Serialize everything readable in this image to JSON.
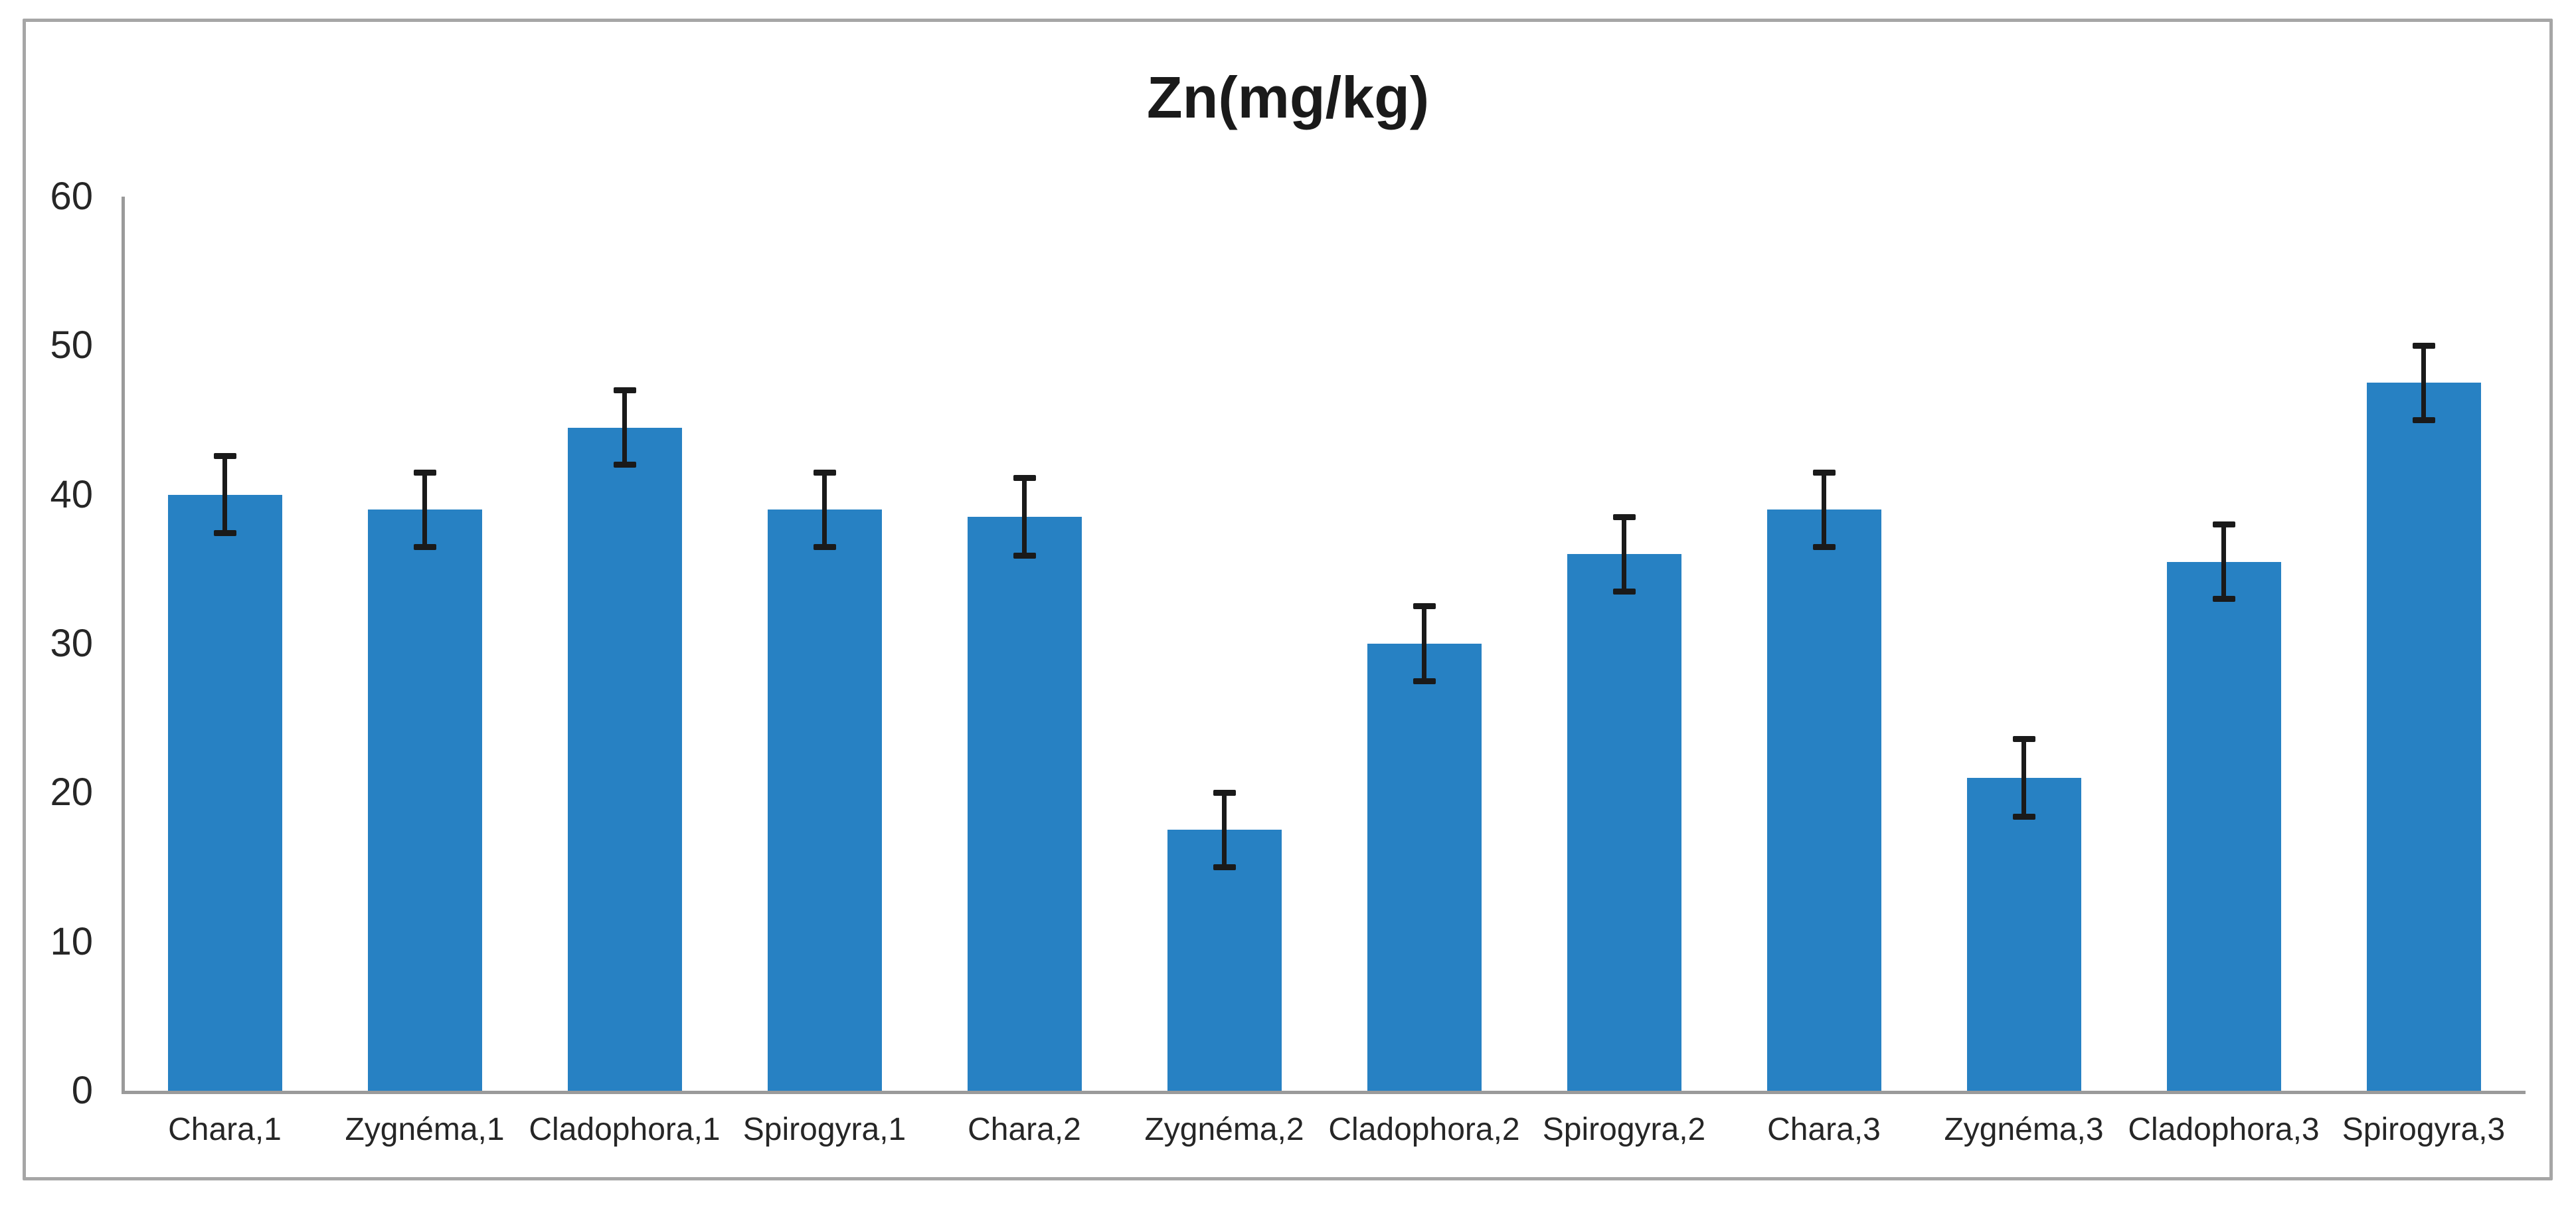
{
  "chart_data": {
    "type": "bar",
    "title": "Zn(mg/kg)",
    "categories": [
      "Chara,1",
      "Zygnéma,1",
      "Cladophora,1",
      "Spirogyra,1",
      "Chara,2",
      "Zygnéma,2",
      "Cladophora,2",
      "Spirogyra,2",
      "Chara,3",
      "Zygnéma,3",
      "Cladophora,3",
      "Spirogyra,3"
    ],
    "values": [
      40,
      39,
      44.5,
      39,
      38.5,
      17.5,
      30,
      36,
      39,
      21,
      35.5,
      47.5
    ],
    "error_bars": [
      2.6,
      2.5,
      2.5,
      2.5,
      2.6,
      2.5,
      2.5,
      2.5,
      2.5,
      2.6,
      2.5,
      2.5
    ],
    "xlabel": "",
    "ylabel": "",
    "ylim": [
      0,
      60
    ],
    "yticks": [
      0,
      10,
      20,
      30,
      40,
      50,
      60
    ],
    "grid": false,
    "legend_position": "none",
    "colors": {
      "bar": "#2781c3",
      "error_bar": "#1a1a1a",
      "axis": "#9a9a9a",
      "tick_label": "#262626",
      "title": "#1a1a1a",
      "frame_border": "#a6a6a6",
      "background": "#ffffff"
    }
  }
}
